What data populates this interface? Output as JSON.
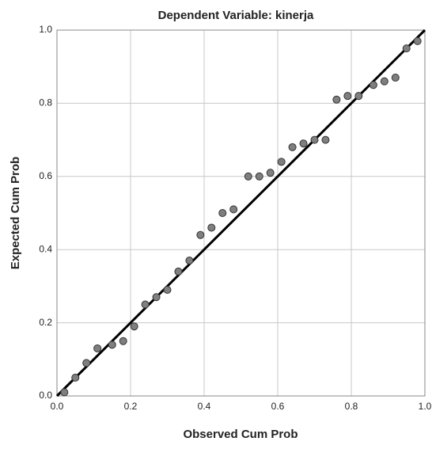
{
  "chart_data": {
    "type": "scatter",
    "title": "Dependent Variable: kinerja",
    "x_label": "Observed Cum Prob",
    "y_label": "Expected Cum Prob",
    "x": [
      0.02,
      0.05,
      0.08,
      0.11,
      0.15,
      0.18,
      0.21,
      0.24,
      0.27,
      0.3,
      0.33,
      0.36,
      0.39,
      0.42,
      0.45,
      0.48,
      0.52,
      0.55,
      0.58,
      0.61,
      0.64,
      0.67,
      0.7,
      0.73,
      0.76,
      0.79,
      0.82,
      0.86,
      0.89,
      0.92,
      0.95,
      0.98
    ],
    "values": [
      0.01,
      0.05,
      0.09,
      0.13,
      0.14,
      0.15,
      0.19,
      0.25,
      0.27,
      0.29,
      0.34,
      0.37,
      0.44,
      0.46,
      0.5,
      0.51,
      0.6,
      0.6,
      0.61,
      0.64,
      0.68,
      0.69,
      0.7,
      0.7,
      0.81,
      0.82,
      0.82,
      0.85,
      0.86,
      0.87,
      0.95,
      0.97
    ],
    "color": "#7f7f7f",
    "xlim": [
      0,
      1
    ],
    "ylim": [
      0,
      1
    ],
    "xticks": [
      {
        "value": 0,
        "label": "0.0"
      },
      0.2,
      0.4,
      0.6,
      0.8,
      {
        "value": 1,
        "label": "1.0"
      }
    ],
    "yticks": [
      {
        "value": 0,
        "label": "0.0"
      },
      0.2,
      0.4,
      0.6,
      0.8,
      {
        "value": 1,
        "label": "1.0"
      }
    ],
    "grid": true
  }
}
